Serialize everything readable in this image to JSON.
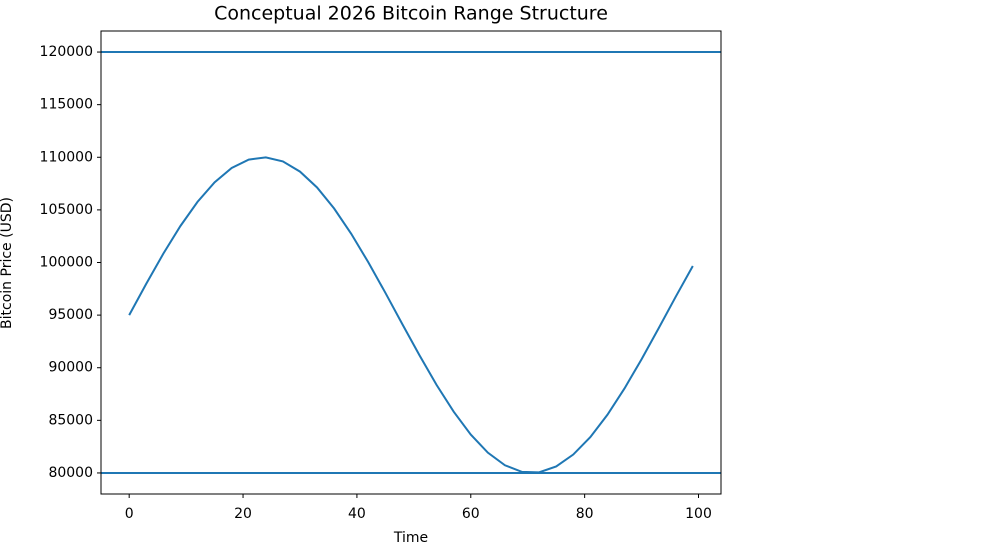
{
  "chart_data": {
    "type": "line",
    "title": "Conceptual 2026 Bitcoin Range Structure",
    "xlabel": "Time",
    "ylabel": "Bitcoin Price (USD)",
    "x": [
      0,
      3,
      6,
      9,
      12,
      15,
      18,
      21,
      24,
      27,
      30,
      33,
      36,
      39,
      42,
      45,
      48,
      51,
      54,
      57,
      60,
      63,
      66,
      69,
      72,
      75,
      78,
      81,
      84,
      87,
      90,
      93,
      96,
      99
    ],
    "series": [
      {
        "color": "#1f77b4",
        "values": [
          95000,
          97980,
          100840,
          103470,
          105760,
          107620,
          108980,
          109780,
          109990,
          109610,
          108640,
          107130,
          105130,
          102730,
          100020,
          97120,
          94120,
          91170,
          88360,
          85820,
          83650,
          81930,
          80730,
          80100,
          80060,
          80620,
          81750,
          83410,
          85530,
          88030,
          90810,
          93750,
          96750,
          99670
        ]
      }
    ],
    "hlines": [
      120000,
      80000
    ],
    "hline_color": "#1f77b4",
    "xlim": [
      -4.95,
      103.95
    ],
    "ylim": [
      78000,
      122000
    ],
    "xticks": [
      0,
      20,
      40,
      60,
      80,
      100
    ],
    "yticks": [
      80000,
      85000,
      90000,
      95000,
      100000,
      105000,
      110000,
      115000,
      120000
    ],
    "grid": false
  }
}
